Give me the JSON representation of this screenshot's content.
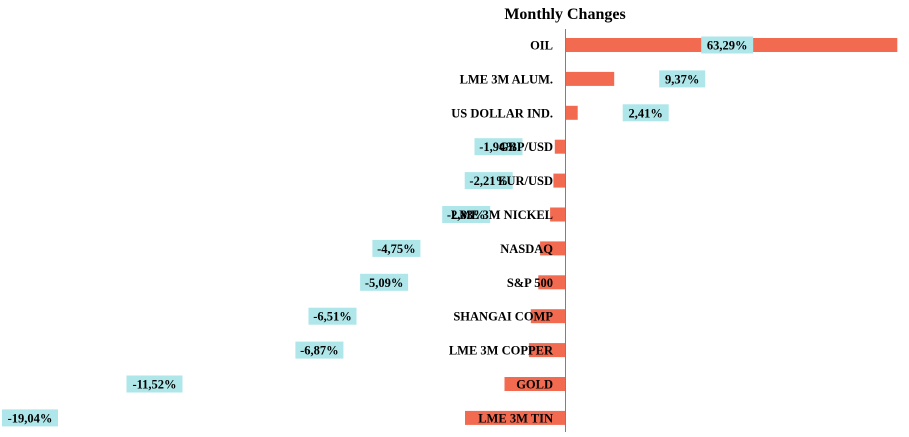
{
  "chart_data": {
    "type": "bar",
    "orientation": "horizontal",
    "title": "Monthly Changes",
    "categories": [
      "OIL",
      "LME 3M ALUM.",
      "US DOLLAR IND.",
      "GBP/USD",
      "EUR/USD",
      "LME 3M NICKEL",
      "NASDAQ",
      "S&P 500",
      "SHANGAI COMP",
      "LME 3M COPPER",
      "GOLD",
      "LME 3M TIN"
    ],
    "values": [
      63.29,
      9.37,
      2.41,
      -1.94,
      -2.21,
      -2.83,
      -4.75,
      -5.09,
      -6.51,
      -6.87,
      -11.52,
      -19.04
    ],
    "value_labels": [
      "63,29%",
      "9,37%",
      "2,41%",
      "-1,94%",
      "-2,21%",
      "-2,83%",
      "-4,75%",
      "-5,09%",
      "-6,51%",
      "-6,87%",
      "-11,52%",
      "-19,04%"
    ],
    "unit": "%",
    "bar_color": "#f26a4f",
    "label_box_color": "#aee6ea",
    "axis_color": "#808080",
    "grid": false,
    "legend": "none"
  }
}
